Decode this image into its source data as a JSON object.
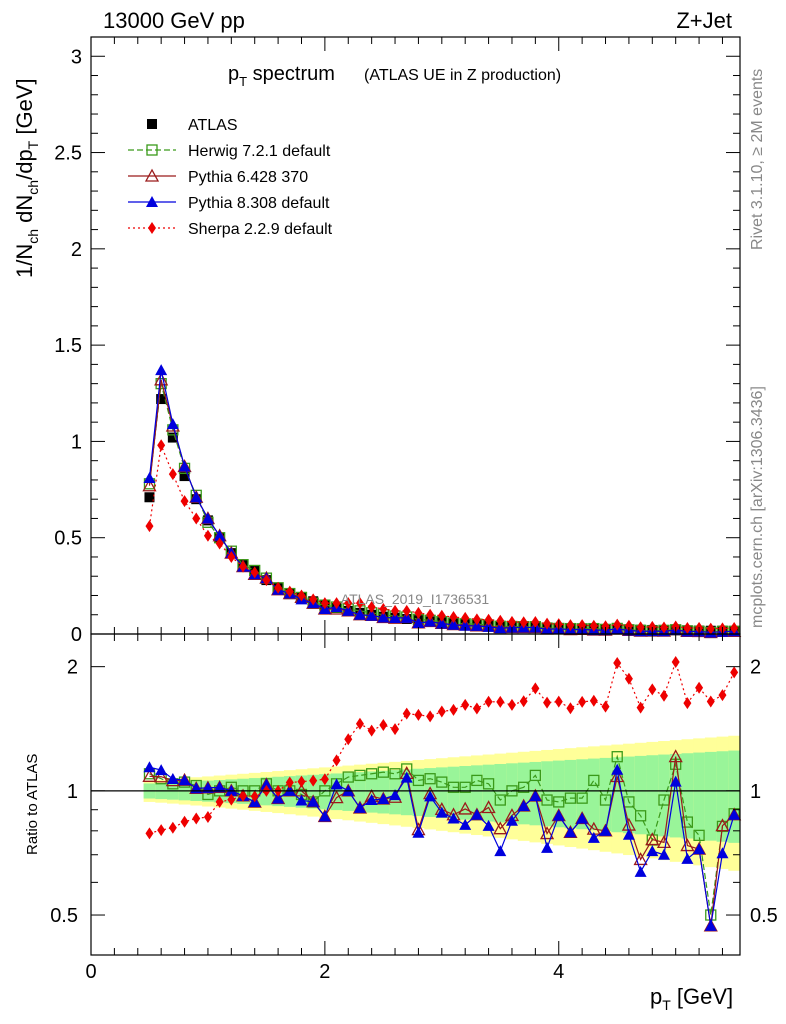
{
  "header": {
    "energy_label": "13000 GeV pp",
    "process_label": "Z+Jet",
    "title_main": "p",
    "title_sub": "T",
    "title_word": " spectrum",
    "title_detail": "(ATLAS UE in Z production)",
    "watermark": "ATLAS_2019_I1736531",
    "side_top": "Rivet 3.1.10, ≥ 2M events",
    "side_bottom": "mcplots.cern.ch [arXiv:1306.3436]"
  },
  "axes": {
    "x_label": "p",
    "x_label_sub": "T",
    "x_label_unit": " [GeV]",
    "y_label_main": "1/N",
    "y_label_ch": "ch",
    "y_label_dn": " dN",
    "y_label_dp": "/dp",
    "y_label_t": "T",
    "y_label_unit": " [GeV]",
    "ratio_label": "Ratio to ATLAS",
    "x_ticks": [
      "0",
      "2",
      "4"
    ],
    "y_ticks_main": [
      "0",
      "0.5",
      "1",
      "1.5",
      "2",
      "2.5",
      "3"
    ],
    "y_ticks_ratio": [
      "0.5",
      "1",
      "2"
    ]
  },
  "legend": [
    {
      "label": "ATLAS",
      "marker": "filled-square",
      "color": "#000000"
    },
    {
      "label": "Herwig 7.2.1 default",
      "marker": "open-square",
      "color": "#3a9a1a"
    },
    {
      "label": "Pythia 6.428 370",
      "marker": "open-triangle",
      "color": "#9b1b1b"
    },
    {
      "label": "Pythia 8.308 default",
      "marker": "filled-triangle",
      "color": "#0000dd"
    },
    {
      "label": "Sherpa 2.2.9 default",
      "marker": "filled-diamond",
      "color": "#ee0000"
    }
  ],
  "chart_data": {
    "type": "line",
    "x": [
      0.5,
      0.6,
      0.7,
      0.8,
      0.9,
      1.0,
      1.1,
      1.2,
      1.3,
      1.4,
      1.5,
      1.6,
      1.7,
      1.8,
      1.9,
      2.0,
      2.1,
      2.2,
      2.3,
      2.4,
      2.5,
      2.6,
      2.7,
      2.8,
      2.9,
      3.0,
      3.1,
      3.2,
      3.3,
      3.4,
      3.5,
      3.6,
      3.7,
      3.8,
      3.9,
      4.0,
      4.1,
      4.2,
      4.3,
      4.4,
      4.5,
      4.6,
      4.7,
      4.8,
      4.9,
      5.0,
      5.1,
      5.2,
      5.3,
      5.4,
      5.5
    ],
    "xlim": [
      0,
      5.55
    ],
    "ylim_main": [
      0,
      3.1
    ],
    "ylim_ratio": [
      0.4,
      2.4
    ],
    "ratio_log_scale": true,
    "series": [
      {
        "name": "ATLAS",
        "color": "#000000",
        "values": [
          0.71,
          1.22,
          1.02,
          0.82,
          0.7,
          0.59,
          0.5,
          0.42,
          0.36,
          0.33,
          0.28,
          0.24,
          0.21,
          0.19,
          0.17,
          0.15,
          0.135,
          0.12,
          0.11,
          0.1,
          0.09,
          0.085,
          0.078,
          0.072,
          0.066,
          0.061,
          0.056,
          0.052,
          0.048,
          0.045,
          0.042,
          0.039,
          0.037,
          0.035,
          0.033,
          0.031,
          0.029,
          0.028,
          0.026,
          0.025,
          0.024,
          0.023,
          0.022,
          0.021,
          0.02,
          0.019,
          0.019,
          0.018,
          0.017,
          0.017,
          0.016
        ]
      },
      {
        "name": "Herwig 7.2.1 default",
        "color": "#3a9a1a",
        "values": [
          0.78,
          1.3,
          1.06,
          0.86,
          0.72,
          0.58,
          0.5,
          0.43,
          0.36,
          0.33,
          0.29,
          0.24,
          0.21,
          0.19,
          0.16,
          0.15,
          0.14,
          0.13,
          0.12,
          0.11,
          0.1,
          0.093,
          0.088,
          0.076,
          0.071,
          0.064,
          0.057,
          0.053,
          0.051,
          0.047,
          0.04,
          0.039,
          0.038,
          0.038,
          0.031,
          0.029,
          0.028,
          0.027,
          0.028,
          0.024,
          0.029,
          0.022,
          0.019,
          0.016,
          0.019,
          0.022,
          0.016,
          0.014,
          0.008,
          0.014,
          0.014
        ]
      },
      {
        "name": "Pythia 6.428 370",
        "color": "#9b1b1b",
        "values": [
          0.77,
          1.32,
          1.08,
          0.87,
          0.71,
          0.6,
          0.51,
          0.42,
          0.35,
          0.31,
          0.29,
          0.23,
          0.21,
          0.19,
          0.16,
          0.13,
          0.13,
          0.12,
          0.1,
          0.097,
          0.086,
          0.082,
          0.086,
          0.058,
          0.065,
          0.055,
          0.049,
          0.047,
          0.042,
          0.041,
          0.034,
          0.034,
          0.034,
          0.034,
          0.026,
          0.027,
          0.023,
          0.024,
          0.021,
          0.02,
          0.026,
          0.019,
          0.015,
          0.016,
          0.015,
          0.023,
          0.014,
          0.013,
          0.008,
          0.014,
          0.014
        ]
      },
      {
        "name": "Pythia 8.308 default",
        "color": "#0000dd",
        "values": [
          0.81,
          1.37,
          1.09,
          0.87,
          0.71,
          0.6,
          0.51,
          0.42,
          0.35,
          0.31,
          0.29,
          0.23,
          0.21,
          0.18,
          0.16,
          0.13,
          0.14,
          0.12,
          0.1,
          0.095,
          0.086,
          0.083,
          0.084,
          0.057,
          0.064,
          0.054,
          0.048,
          0.043,
          0.042,
          0.037,
          0.03,
          0.033,
          0.034,
          0.034,
          0.024,
          0.027,
          0.023,
          0.024,
          0.02,
          0.02,
          0.027,
          0.018,
          0.014,
          0.015,
          0.014,
          0.02,
          0.013,
          0.013,
          0.008,
          0.012,
          0.014
        ]
      },
      {
        "name": "Sherpa 2.2.9 default",
        "color": "#ee0000",
        "values": [
          0.56,
          0.98,
          0.83,
          0.69,
          0.6,
          0.51,
          0.47,
          0.4,
          0.35,
          0.32,
          0.28,
          0.24,
          0.22,
          0.2,
          0.18,
          0.16,
          0.16,
          0.16,
          0.16,
          0.14,
          0.13,
          0.12,
          0.12,
          0.11,
          0.1,
          0.095,
          0.088,
          0.084,
          0.076,
          0.074,
          0.069,
          0.063,
          0.061,
          0.062,
          0.054,
          0.051,
          0.046,
          0.046,
          0.043,
          0.04,
          0.049,
          0.043,
          0.035,
          0.037,
          0.034,
          0.039,
          0.031,
          0.032,
          0.028,
          0.029,
          0.031
        ]
      }
    ],
    "ratios": {
      "Herwig 7.2.1 default": [
        1.1,
        1.07,
        1.04,
        1.05,
        1.03,
        0.98,
        1.0,
        1.02,
        1.0,
        1.0,
        1.04,
        1.0,
        1.0,
        0.98,
        0.94,
        1.0,
        1.04,
        1.08,
        1.09,
        1.1,
        1.11,
        1.1,
        1.13,
        1.06,
        1.07,
        1.05,
        1.02,
        1.02,
        1.06,
        1.04,
        0.95,
        1.0,
        1.02,
        1.09,
        0.95,
        0.94,
        0.96,
        0.96,
        1.06,
        0.95,
        1.21,
        0.94,
        0.87,
        0.76,
        0.95,
        1.16,
        0.84,
        0.78,
        0.5,
        0.82,
        0.88
      ]
    }
  }
}
